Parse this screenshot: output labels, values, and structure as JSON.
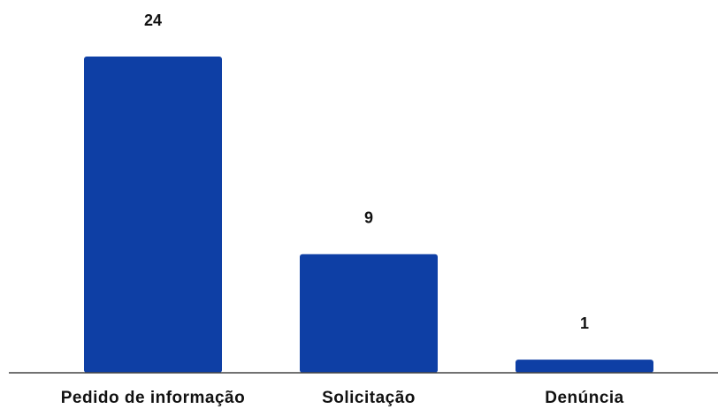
{
  "chart_data": {
    "type": "bar",
    "categories": [
      "Pedido de informação",
      "Solicitação",
      "Denúncia"
    ],
    "values": [
      24,
      9,
      1
    ],
    "color": "#0e3fa5",
    "ylim": [
      0,
      24
    ]
  }
}
